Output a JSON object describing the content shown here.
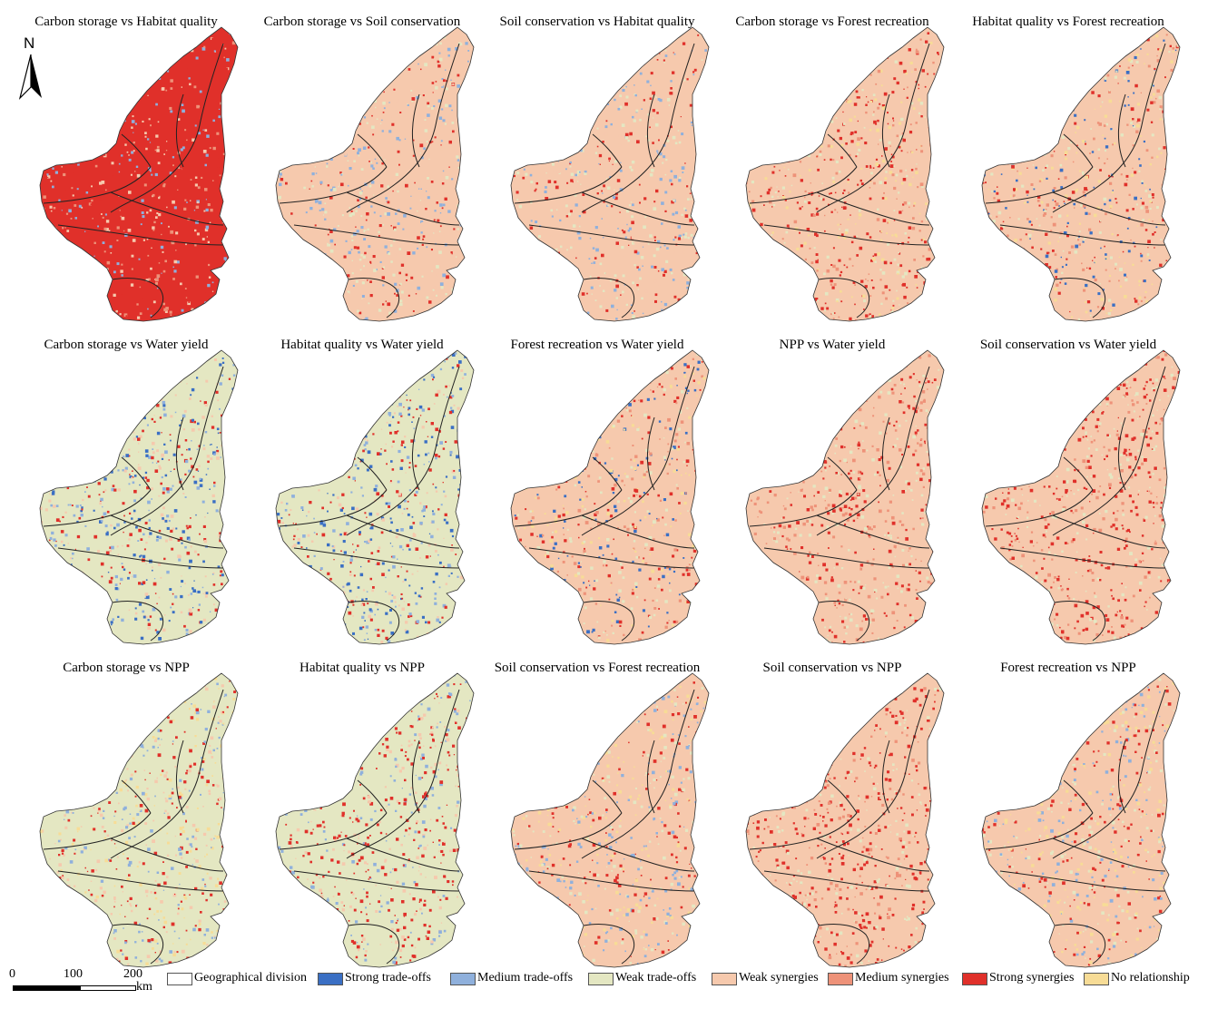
{
  "panels": [
    {
      "title": "Carbon storage vs Habitat quality",
      "dominant": "strong_synergies",
      "mix": [
        "strong_synergies",
        "strong_synergies",
        "medium_synergies",
        "weak_synergies",
        "medium_tradeoffs"
      ]
    },
    {
      "title": "Carbon storage vs Soil conservation",
      "dominant": "weak_synergies",
      "mix": [
        "weak_synergies",
        "weak_tradeoffs",
        "strong_synergies",
        "medium_tradeoffs"
      ]
    },
    {
      "title": "Soil conservation vs Habitat quality",
      "dominant": "weak_synergies",
      "mix": [
        "weak_synergies",
        "weak_tradeoffs",
        "strong_synergies",
        "medium_tradeoffs"
      ]
    },
    {
      "title": "Carbon storage vs Forest recreation",
      "dominant": "weak_synergies",
      "mix": [
        "strong_synergies",
        "strong_synergies",
        "medium_synergies",
        "weak_tradeoffs",
        "no_relationship"
      ]
    },
    {
      "title": "Habitat quality vs Forest recreation",
      "dominant": "weak_synergies",
      "mix": [
        "strong_synergies",
        "medium_synergies",
        "weak_tradeoffs",
        "no_relationship",
        "strong_tradeoffs"
      ]
    },
    {
      "title": "Carbon storage vs Water yield",
      "dominant": "weak_tradeoffs",
      "mix": [
        "strong_tradeoffs",
        "medium_tradeoffs",
        "weak_synergies",
        "strong_synergies"
      ]
    },
    {
      "title": "Habitat quality vs Water yield",
      "dominant": "weak_tradeoffs",
      "mix": [
        "strong_tradeoffs",
        "medium_tradeoffs",
        "weak_synergies",
        "strong_synergies"
      ]
    },
    {
      "title": "Forest recreation vs Water yield",
      "dominant": "weak_synergies",
      "mix": [
        "medium_synergies",
        "strong_tradeoffs",
        "weak_tradeoffs",
        "strong_synergies",
        "no_relationship"
      ]
    },
    {
      "title": "NPP  vs Water yield",
      "dominant": "weak_synergies",
      "mix": [
        "strong_synergies",
        "medium_synergies",
        "weak_tradeoffs"
      ]
    },
    {
      "title": "Soil conservation vs Water yield",
      "dominant": "weak_synergies",
      "mix": [
        "strong_synergies",
        "strong_synergies",
        "medium_synergies",
        "weak_tradeoffs"
      ]
    },
    {
      "title": "Carbon storage vs NPP",
      "dominant": "weak_tradeoffs",
      "mix": [
        "weak_synergies",
        "strong_synergies",
        "medium_tradeoffs",
        "no_relationship"
      ]
    },
    {
      "title": "Habitat quality vs NPP",
      "dominant": "weak_tradeoffs",
      "mix": [
        "weak_synergies",
        "strong_synergies",
        "strong_synergies",
        "medium_tradeoffs"
      ]
    },
    {
      "title": "Soil conservation vs Forest recreation",
      "dominant": "weak_synergies",
      "mix": [
        "weak_tradeoffs",
        "strong_synergies",
        "no_relationship",
        "medium_tradeoffs"
      ]
    },
    {
      "title": "Soil conservation vs NPP",
      "dominant": "weak_synergies",
      "mix": [
        "strong_synergies",
        "strong_synergies",
        "medium_synergies",
        "weak_tradeoffs"
      ]
    },
    {
      "title": "Forest recreation vs NPP",
      "dominant": "weak_synergies",
      "mix": [
        "weak_tradeoffs",
        "strong_synergies",
        "no_relationship",
        "medium_tradeoffs"
      ]
    }
  ],
  "north_arrow": {
    "label": "N"
  },
  "scale_bar": {
    "ticks": [
      "0",
      "100",
      "200"
    ],
    "unit": "km"
  },
  "legend": [
    {
      "key": "geographical_division",
      "label": "Geographical division",
      "color": "#ffffff"
    },
    {
      "key": "strong_tradeoffs",
      "label": "Strong trade-offs",
      "color": "#3a6fc4"
    },
    {
      "key": "medium_tradeoffs",
      "label": "Medium trade-offs",
      "color": "#8fb0dc"
    },
    {
      "key": "weak_tradeoffs",
      "label": "Weak trade-offs",
      "color": "#e4e7c2"
    },
    {
      "key": "weak_synergies",
      "label": "Weak synergies",
      "color": "#f6c9ad"
    },
    {
      "key": "medium_synergies",
      "label": "Medium synergies",
      "color": "#ee9279"
    },
    {
      "key": "strong_synergies",
      "label": "Strong synergies",
      "color": "#e0302a"
    },
    {
      "key": "no_relationship",
      "label": "No relationship",
      "color": "#f7dc96"
    }
  ]
}
